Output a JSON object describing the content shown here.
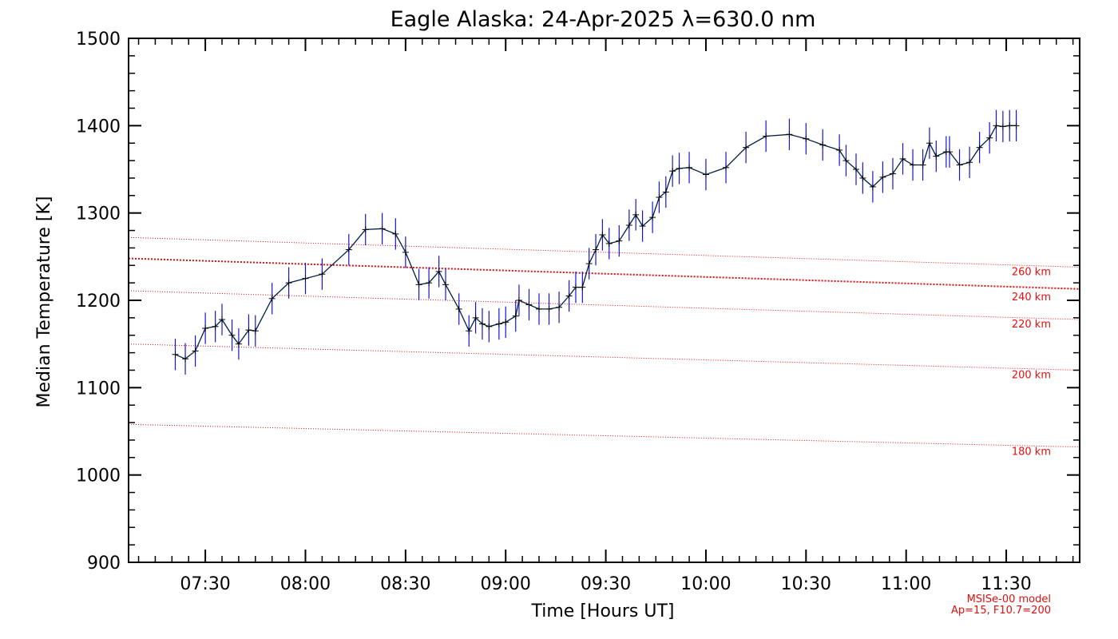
{
  "chart_data": {
    "type": "line",
    "title": "Eagle Alaska: 24-Apr-2025 λ=630.0 nm",
    "xlabel": "Time [Hours UT]",
    "ylabel": "Median Temperature [K]",
    "xlim": [
      "07:07",
      "11:52"
    ],
    "ylim": [
      900,
      1500
    ],
    "x_ticks": [
      "07:30",
      "08:00",
      "08:30",
      "09:00",
      "09:30",
      "10:00",
      "10:30",
      "11:00",
      "11:30"
    ],
    "y_ticks": [
      900,
      1000,
      1100,
      1200,
      1300,
      1400,
      1500
    ],
    "grid": false,
    "colors": {
      "line": "#00204a",
      "errorbar": "#1515d6",
      "marker": "#000000",
      "model": "#e01010",
      "axes": "#000000"
    },
    "series": [
      {
        "x": [
          "07:21",
          "07:24",
          "07:27",
          "07:30",
          "07:33",
          "07:35",
          "07:38",
          "07:40",
          "07:43",
          "07:45",
          "07:50",
          "07:55",
          "08:00",
          "08:05",
          "08:13",
          "08:18",
          "08:23",
          "08:27",
          "08:30",
          "08:34",
          "08:37",
          "08:40",
          "08:42",
          "08:46",
          "08:49",
          "08:51",
          "08:53",
          "08:55",
          "08:58",
          "09:00",
          "09:03",
          "09:04",
          "09:07",
          "09:10",
          "09:13",
          "09:16",
          "09:19",
          "09:21",
          "09:23",
          "09:25",
          "09:27",
          "09:29",
          "09:31",
          "09:34",
          "09:37",
          "09:39",
          "09:41",
          "09:44",
          "09:46",
          "09:48",
          "09:50",
          "09:52",
          "09:55",
          "10:00",
          "10:06",
          "10:12",
          "10:18",
          "10:25",
          "10:30",
          "10:35",
          "10:40",
          "10:42",
          "10:45",
          "10:47",
          "10:50",
          "10:53",
          "10:56",
          "10:59",
          "11:02",
          "11:05",
          "11:07",
          "11:09",
          "11:12",
          "11:13",
          "11:16",
          "11:19",
          "11:22",
          "11:25",
          "11:27",
          "11:29",
          "11:31",
          "11:33"
        ],
        "y": [
          1138,
          1133,
          1142,
          1168,
          1170,
          1178,
          1160,
          1150,
          1166,
          1165,
          1202,
          1220,
          1225,
          1230,
          1258,
          1281,
          1282,
          1276,
          1255,
          1218,
          1220,
          1233,
          1218,
          1190,
          1165,
          1180,
          1173,
          1170,
          1173,
          1175,
          1182,
          1200,
          1195,
          1190,
          1190,
          1192,
          1205,
          1215,
          1215,
          1242,
          1258,
          1275,
          1265,
          1268,
          1286,
          1298,
          1285,
          1295,
          1318,
          1324,
          1348,
          1351,
          1352,
          1344,
          1352,
          1375,
          1388,
          1390,
          1385,
          1378,
          1372,
          1360,
          1350,
          1340,
          1330,
          1341,
          1345,
          1362,
          1355,
          1355,
          1380,
          1365,
          1370,
          1370,
          1355,
          1358,
          1375,
          1386,
          1400,
          1399,
          1400,
          1400
        ],
        "err": 18
      }
    ],
    "model_lines": [
      {
        "label": "260 km",
        "y_start": 1272,
        "y_end": 1238
      },
      {
        "label": "240 km",
        "y_start": 1248,
        "y_end": 1213
      },
      {
        "label": "220 km",
        "y_start": 1211,
        "y_end": 1178
      },
      {
        "label": "200 km",
        "y_start": 1150,
        "y_end": 1120
      },
      {
        "label": "180 km",
        "y_start": 1058,
        "y_end": 1032
      }
    ],
    "model_note": [
      "MSISe-00 model",
      "Ap=15, F10.7=200"
    ]
  }
}
